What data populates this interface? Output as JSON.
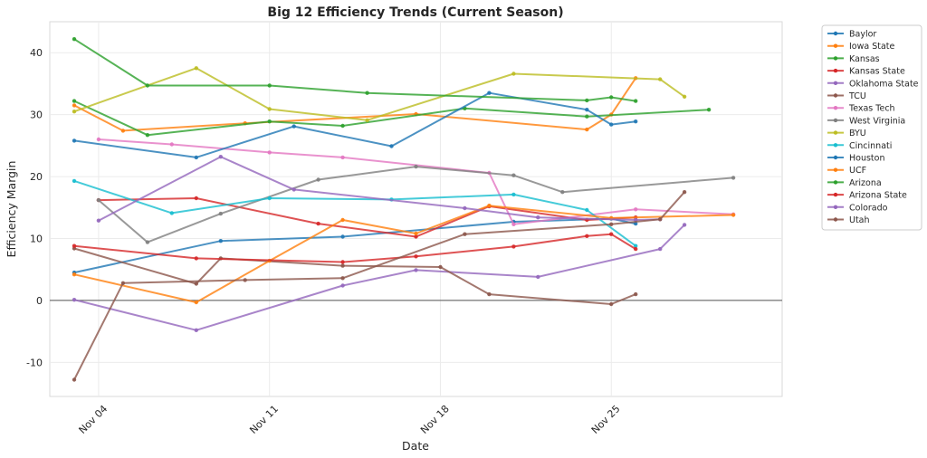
{
  "chart_data": {
    "type": "line",
    "title": "Big 12 Efficiency Trends (Current Season)",
    "xlabel": "Date",
    "ylabel": "Efficiency Margin",
    "x_range": [
      "2023-11-02",
      "2023-12-02"
    ],
    "ylim": [
      -15.5,
      45
    ],
    "x_ticks": [
      {
        "date": "2023-11-04",
        "label": "Nov 04"
      },
      {
        "date": "2023-11-11",
        "label": "Nov 11"
      },
      {
        "date": "2023-11-18",
        "label": "Nov 18"
      },
      {
        "date": "2023-11-25",
        "label": "Nov 25"
      }
    ],
    "y_ticks": [
      -10,
      0,
      10,
      20,
      30,
      40
    ],
    "grid": true,
    "zero_line": true,
    "legend_position": "outside-right",
    "series": [
      {
        "name": "Baylor",
        "color": "#1f77b4",
        "points": [
          [
            "2023-11-03",
            4.5
          ],
          [
            "2023-11-09",
            9.6
          ],
          [
            "2023-11-14",
            10.3
          ],
          [
            "2023-11-21",
            12.7
          ],
          [
            "2023-11-25",
            13.2
          ],
          [
            "2023-11-26",
            12.4
          ]
        ]
      },
      {
        "name": "Iowa State",
        "color": "#ff7f0e",
        "points": [
          [
            "2023-11-03",
            31.5
          ],
          [
            "2023-11-05",
            27.4
          ],
          [
            "2023-11-10",
            28.6
          ],
          [
            "2023-11-17",
            30.1
          ],
          [
            "2023-11-24",
            27.6
          ],
          [
            "2023-11-25",
            30.0
          ],
          [
            "2023-11-26",
            35.9
          ]
        ]
      },
      {
        "name": "Kansas",
        "color": "#2ca02c",
        "points": [
          [
            "2023-11-03",
            32.2
          ],
          [
            "2023-11-06",
            26.7
          ],
          [
            "2023-11-11",
            28.9
          ],
          [
            "2023-11-14",
            28.2
          ],
          [
            "2023-11-19",
            31.0
          ],
          [
            "2023-11-24",
            29.7
          ],
          [
            "2023-11-29",
            30.8
          ]
        ]
      },
      {
        "name": "Kansas State",
        "color": "#d62728",
        "points": [
          [
            "2023-11-04",
            16.2
          ],
          [
            "2023-11-08",
            16.5
          ],
          [
            "2023-11-13",
            12.4
          ],
          [
            "2023-11-17",
            10.3
          ],
          [
            "2023-11-20",
            15.2
          ],
          [
            "2023-11-24",
            13.0
          ],
          [
            "2023-11-26",
            13.4
          ]
        ]
      },
      {
        "name": "Oklahoma State",
        "color": "#9467bd",
        "points": [
          [
            "2023-11-03",
            0.1
          ],
          [
            "2023-11-08",
            -4.8
          ],
          [
            "2023-11-14",
            2.4
          ],
          [
            "2023-11-17",
            4.9
          ],
          [
            "2023-11-22",
            3.8
          ],
          [
            "2023-11-27",
            8.3
          ],
          [
            "2023-11-28",
            12.2
          ]
        ]
      },
      {
        "name": "TCU",
        "color": "#8c564b",
        "points": [
          [
            "2023-11-03",
            8.4
          ],
          [
            "2023-11-08",
            2.7
          ],
          [
            "2023-11-09",
            6.8
          ],
          [
            "2023-11-14",
            5.6
          ],
          [
            "2023-11-18",
            5.4
          ],
          [
            "2023-11-20",
            1.0
          ],
          [
            "2023-11-25",
            -0.6
          ],
          [
            "2023-11-26",
            1.0
          ]
        ]
      },
      {
        "name": "Texas Tech",
        "color": "#e377c2",
        "points": [
          [
            "2023-11-04",
            26.0
          ],
          [
            "2023-11-07",
            25.2
          ],
          [
            "2023-11-11",
            23.9
          ],
          [
            "2023-11-14",
            23.1
          ],
          [
            "2023-11-20",
            20.6
          ],
          [
            "2023-11-21",
            12.3
          ],
          [
            "2023-11-26",
            14.7
          ],
          [
            "2023-11-30",
            13.9
          ]
        ]
      },
      {
        "name": "West Virginia",
        "color": "#7f7f7f",
        "points": [
          [
            "2023-11-04",
            16.2
          ],
          [
            "2023-11-06",
            9.4
          ],
          [
            "2023-11-09",
            14.0
          ],
          [
            "2023-11-13",
            19.5
          ],
          [
            "2023-11-17",
            21.6
          ],
          [
            "2023-11-21",
            20.2
          ],
          [
            "2023-11-23",
            17.5
          ],
          [
            "2023-11-30",
            19.8
          ]
        ]
      },
      {
        "name": "BYU",
        "color": "#bcbd22",
        "points": [
          [
            "2023-11-03",
            30.5
          ],
          [
            "2023-11-08",
            37.5
          ],
          [
            "2023-11-11",
            30.9
          ],
          [
            "2023-11-15",
            29.1
          ],
          [
            "2023-11-21",
            36.6
          ],
          [
            "2023-11-27",
            35.7
          ],
          [
            "2023-11-28",
            32.9
          ]
        ]
      },
      {
        "name": "Cincinnati",
        "color": "#17becf",
        "points": [
          [
            "2023-11-03",
            19.3
          ],
          [
            "2023-11-07",
            14.1
          ],
          [
            "2023-11-11",
            16.5
          ],
          [
            "2023-11-16",
            16.3
          ],
          [
            "2023-11-21",
            17.1
          ],
          [
            "2023-11-24",
            14.6
          ],
          [
            "2023-11-26",
            8.8
          ]
        ]
      },
      {
        "name": "Houston",
        "color": "#1f77b4",
        "points": [
          [
            "2023-11-03",
            25.8
          ],
          [
            "2023-11-08",
            23.1
          ],
          [
            "2023-11-12",
            28.1
          ],
          [
            "2023-11-16",
            24.9
          ],
          [
            "2023-11-20",
            33.5
          ],
          [
            "2023-11-24",
            30.8
          ],
          [
            "2023-11-25",
            28.4
          ],
          [
            "2023-11-26",
            28.9
          ]
        ]
      },
      {
        "name": "UCF",
        "color": "#ff7f0e",
        "points": [
          [
            "2023-11-03",
            4.2
          ],
          [
            "2023-11-08",
            -0.3
          ],
          [
            "2023-11-11",
            6.4
          ],
          [
            "2023-11-14",
            13.0
          ],
          [
            "2023-11-17",
            10.8
          ],
          [
            "2023-11-20",
            15.3
          ],
          [
            "2023-11-25",
            13.3
          ],
          [
            "2023-11-30",
            13.8
          ]
        ]
      },
      {
        "name": "Arizona",
        "color": "#2ca02c",
        "points": [
          [
            "2023-11-03",
            42.2
          ],
          [
            "2023-11-06",
            34.7
          ],
          [
            "2023-11-11",
            34.7
          ],
          [
            "2023-11-15",
            33.5
          ],
          [
            "2023-11-24",
            32.3
          ],
          [
            "2023-11-25",
            32.8
          ],
          [
            "2023-11-26",
            32.2
          ]
        ]
      },
      {
        "name": "Arizona State",
        "color": "#d62728",
        "points": [
          [
            "2023-11-03",
            8.8
          ],
          [
            "2023-11-08",
            6.8
          ],
          [
            "2023-11-14",
            6.2
          ],
          [
            "2023-11-17",
            7.1
          ],
          [
            "2023-11-21",
            8.7
          ],
          [
            "2023-11-24",
            10.4
          ],
          [
            "2023-11-25",
            10.7
          ],
          [
            "2023-11-26",
            8.3
          ]
        ]
      },
      {
        "name": "Colorado",
        "color": "#9467bd",
        "points": [
          [
            "2023-11-04",
            12.9
          ],
          [
            "2023-11-09",
            23.2
          ],
          [
            "2023-11-12",
            17.9
          ],
          [
            "2023-11-19",
            14.9
          ],
          [
            "2023-11-22",
            13.4
          ],
          [
            "2023-11-26",
            13.0
          ],
          [
            "2023-11-27",
            13.1
          ]
        ]
      },
      {
        "name": "Utah",
        "color": "#8c564b",
        "points": [
          [
            "2023-11-03",
            -12.8
          ],
          [
            "2023-11-05",
            2.8
          ],
          [
            "2023-11-10",
            3.3
          ],
          [
            "2023-11-14",
            3.6
          ],
          [
            "2023-11-19",
            10.7
          ],
          [
            "2023-11-25",
            12.3
          ],
          [
            "2023-11-27",
            13.1
          ],
          [
            "2023-11-28",
            17.5
          ]
        ]
      }
    ]
  }
}
